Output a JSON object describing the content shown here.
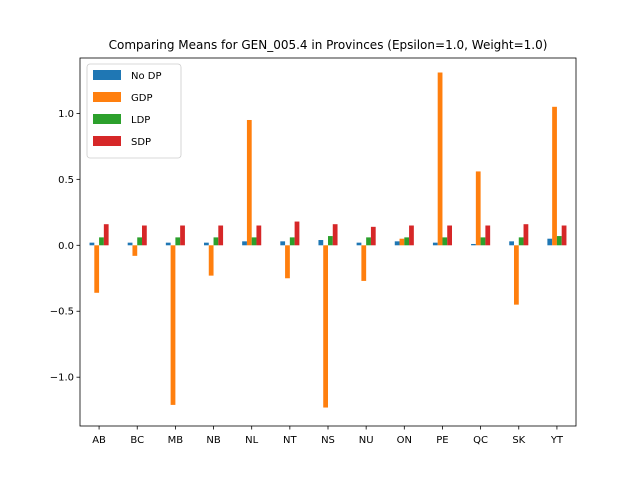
{
  "chart_data": {
    "type": "bar",
    "title": "Comparing Means for GEN_005.4 in Provinces (Epsilon=1.0, Weight=1.0)",
    "xlabel": "",
    "ylabel": "",
    "categories": [
      "AB",
      "BC",
      "MB",
      "NB",
      "NL",
      "NT",
      "NS",
      "NU",
      "ON",
      "PE",
      "QC",
      "SK",
      "YT"
    ],
    "ylim": [
      -1.37,
      1.42
    ],
    "yticks": [
      -1.0,
      -0.5,
      0.0,
      0.5,
      1.0
    ],
    "ytick_labels": [
      "−1.0",
      "−0.5",
      "0.0",
      "0.5",
      "1.0"
    ],
    "legend_position": "upper left",
    "grid": false,
    "series": [
      {
        "name": "No DP",
        "color": "#1f77b4",
        "values": [
          0.02,
          0.02,
          0.02,
          0.02,
          0.03,
          0.03,
          0.04,
          0.02,
          0.03,
          0.02,
          0.01,
          0.03,
          0.05
        ]
      },
      {
        "name": "GDP",
        "color": "#ff7f0e",
        "values": [
          -0.36,
          -0.08,
          -1.21,
          -0.23,
          0.95,
          -0.25,
          -1.23,
          -0.27,
          0.05,
          1.31,
          0.56,
          -0.45,
          1.05
        ]
      },
      {
        "name": "LDP",
        "color": "#2ca02c",
        "values": [
          0.06,
          0.06,
          0.06,
          0.06,
          0.06,
          0.06,
          0.07,
          0.06,
          0.06,
          0.06,
          0.06,
          0.06,
          0.07
        ]
      },
      {
        "name": "SDP",
        "color": "#d62728",
        "values": [
          0.16,
          0.15,
          0.15,
          0.15,
          0.15,
          0.18,
          0.16,
          0.14,
          0.15,
          0.15,
          0.15,
          0.16,
          0.15
        ]
      }
    ]
  }
}
